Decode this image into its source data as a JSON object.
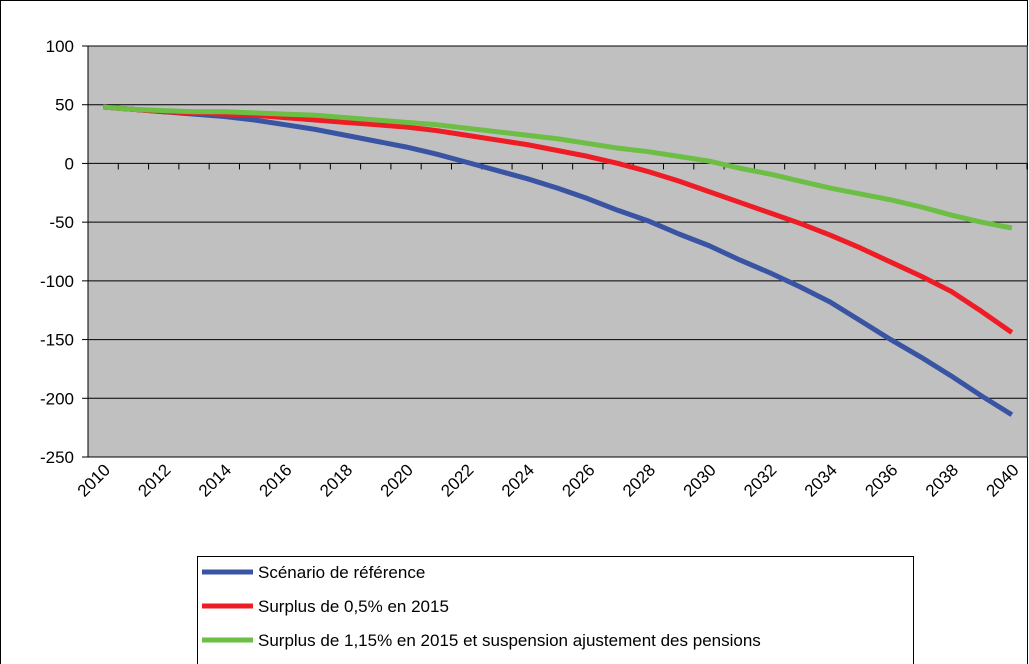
{
  "chart_data": {
    "type": "line",
    "x": [
      2010,
      2011,
      2012,
      2013,
      2014,
      2015,
      2016,
      2017,
      2018,
      2019,
      2020,
      2021,
      2022,
      2023,
      2024,
      2025,
      2026,
      2027,
      2028,
      2029,
      2030,
      2031,
      2032,
      2033,
      2034,
      2035,
      2036,
      2037,
      2038,
      2039,
      2040
    ],
    "xlim": [
      2009.5,
      2040.5
    ],
    "xticks": [
      2010,
      2012,
      2014,
      2016,
      2018,
      2020,
      2022,
      2024,
      2026,
      2028,
      2030,
      2032,
      2034,
      2036,
      2038,
      2040
    ],
    "ylim": [
      -250,
      100
    ],
    "yticks": [
      -250,
      -200,
      -150,
      -100,
      -50,
      0,
      50,
      100
    ],
    "grid": true,
    "series": [
      {
        "name": "Scénario de référence",
        "color": "#3a54a4",
        "values": [
          48,
          46,
          44,
          42,
          40,
          37,
          33,
          29,
          24,
          19,
          14,
          8,
          1,
          -6,
          -13,
          -21,
          -30,
          -40,
          -49,
          -60,
          -70,
          -82,
          -93,
          -105,
          -118,
          -134,
          -150,
          -165,
          -181,
          -198,
          -214
        ]
      },
      {
        "name": "Surplus de 0,5% en 2015",
        "color": "#ee1c24",
        "values": [
          48,
          46,
          44,
          43,
          42,
          41,
          39,
          37,
          35,
          33,
          31,
          28,
          24,
          20,
          16,
          11,
          6,
          0,
          -7,
          -15,
          -24,
          -33,
          -42,
          -51,
          -61,
          -72,
          -84,
          -96,
          -109,
          -126,
          -144
        ]
      },
      {
        "name": "Surplus de 1,15% en 2015 et suspension ajustement des pensions",
        "color": "#6cbe45",
        "values": [
          48,
          46,
          45,
          44,
          44,
          43,
          42,
          41,
          39,
          37,
          35,
          33,
          30,
          27,
          24,
          21,
          17,
          13,
          10,
          6,
          2,
          -4,
          -9,
          -15,
          -21,
          -26,
          -31,
          -37,
          -44,
          -50,
          -55
        ]
      }
    ]
  }
}
